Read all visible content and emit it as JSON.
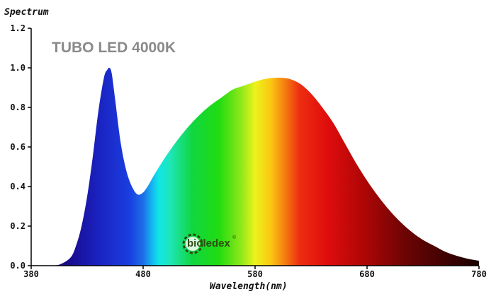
{
  "chart_data": {
    "type": "area",
    "title": "",
    "product_label": "TUBO LED 4000K",
    "ylabel": "Spectrum",
    "xlabel": "Wavelength(nm)",
    "xlim": [
      380,
      780
    ],
    "ylim": [
      0,
      1.2
    ],
    "x_ticks": [
      "380",
      "480",
      "580",
      "680",
      "780"
    ],
    "y_ticks": [
      "0.0",
      "0.2",
      "0.4",
      "0.6",
      "0.8",
      "1.0",
      "1.2"
    ],
    "grid": false,
    "legend": "none",
    "fill": "visible-spectrum gradient (violet-blue to dark red)",
    "series": [
      {
        "x": [
          380,
          395,
          405,
          415,
          420,
          425,
          430,
          435,
          440,
          445,
          448,
          450,
          452,
          455,
          460,
          465,
          470,
          475,
          480,
          485,
          490,
          500,
          510,
          520,
          530,
          540,
          550,
          560,
          570,
          580,
          590,
          600,
          610,
          620,
          630,
          640,
          650,
          660,
          670,
          680,
          690,
          700,
          710,
          720,
          730,
          740,
          750,
          760,
          770,
          780
        ],
        "values": [
          0.0,
          0.0,
          0.005,
          0.04,
          0.1,
          0.2,
          0.35,
          0.55,
          0.78,
          0.95,
          0.99,
          1.0,
          0.97,
          0.84,
          0.62,
          0.48,
          0.4,
          0.36,
          0.37,
          0.41,
          0.46,
          0.55,
          0.63,
          0.7,
          0.76,
          0.81,
          0.85,
          0.89,
          0.91,
          0.93,
          0.945,
          0.95,
          0.945,
          0.92,
          0.87,
          0.8,
          0.72,
          0.62,
          0.52,
          0.43,
          0.35,
          0.28,
          0.22,
          0.17,
          0.13,
          0.1,
          0.07,
          0.05,
          0.035,
          0.025
        ]
      }
    ]
  },
  "branding": {
    "logo_text": "bioledex",
    "logo_mark": "®",
    "logo_icon": "sun-gear-icon"
  },
  "colors": {
    "axis": "#000000",
    "product_label": "#8a8a8a",
    "logo": "#2e4a10"
  }
}
